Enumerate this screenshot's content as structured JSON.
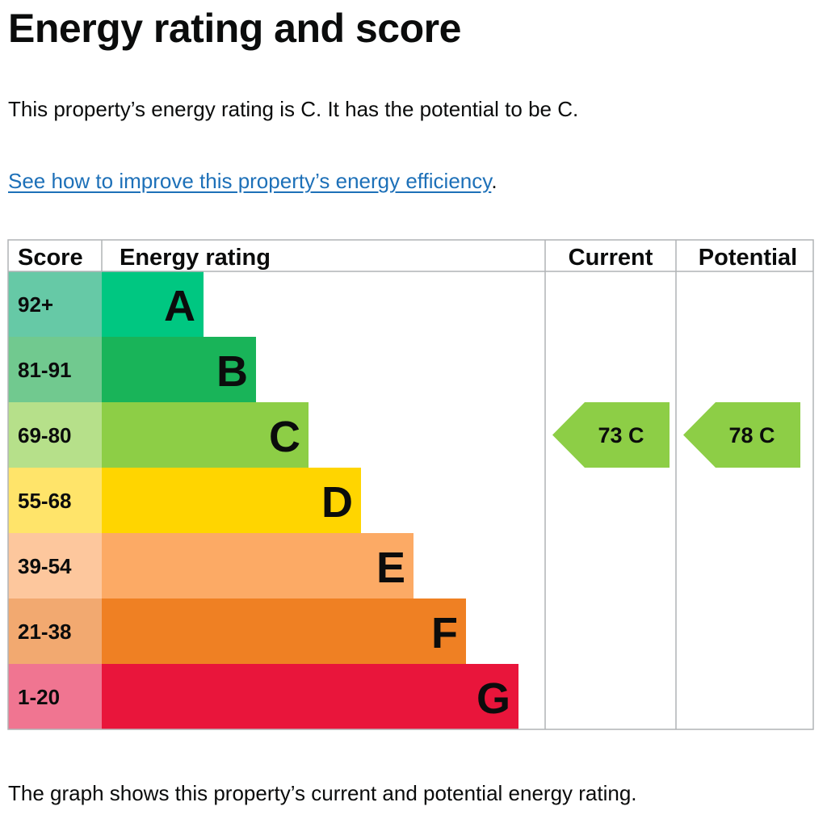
{
  "title": "Energy rating and score",
  "summary": "This property’s energy rating is C. It has the potential to be C.",
  "improve_link": "See how to improve this property’s energy efficiency",
  "improve_link_suffix": ".",
  "footer_text": "The graph shows this property’s current and potential energy rating.",
  "chart_data": {
    "type": "table",
    "headers": {
      "score": "Score",
      "rating": "Energy rating",
      "current": "Current",
      "potential": "Potential"
    },
    "bands": [
      {
        "letter": "A",
        "score": "92+",
        "color": "#00c781",
        "score_color": "#66c9a6"
      },
      {
        "letter": "B",
        "score": "81-91",
        "color": "#19b459",
        "score_color": "#71c98f"
      },
      {
        "letter": "C",
        "score": "69-80",
        "color": "#8dce46",
        "score_color": "#b6e08a"
      },
      {
        "letter": "D",
        "score": "55-68",
        "color": "#ffd500",
        "score_color": "#ffe46a"
      },
      {
        "letter": "E",
        "score": "39-54",
        "color": "#fcaa65",
        "score_color": "#fdc79d"
      },
      {
        "letter": "F",
        "score": "21-38",
        "color": "#ef8023",
        "score_color": "#f2a970"
      },
      {
        "letter": "G",
        "score": "1-20",
        "color": "#e9153b",
        "score_color": "#f07591"
      }
    ],
    "current": {
      "score": 73,
      "letter": "C",
      "label": "73  C"
    },
    "potential": {
      "score": 78,
      "letter": "C",
      "label": "78  C"
    }
  }
}
